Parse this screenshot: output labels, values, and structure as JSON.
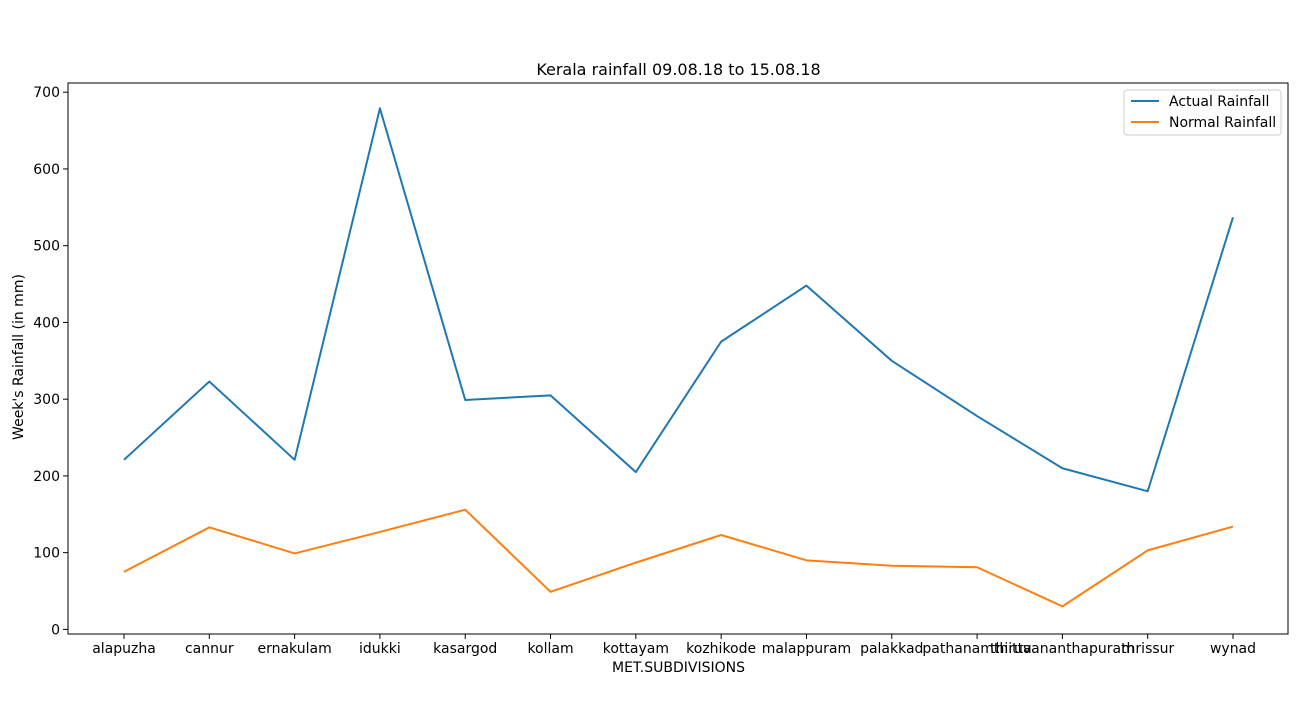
{
  "chart_data": {
    "type": "line",
    "title": "Kerala rainfall 09.08.18 to 15.08.18",
    "xlabel": "MET.SUBDIVISIONS",
    "ylabel": "Week's Rainfall (in mm)",
    "categories": [
      "alapuzha",
      "cannur",
      "ernakulam",
      "idukki",
      "kasargod",
      "kollam",
      "kottayam",
      "kozhikode",
      "malappuram",
      "palakkad",
      "pathanamthitta",
      "thiruvananthapuram",
      "thrissur",
      "wynad"
    ],
    "yticks": [
      0,
      100,
      200,
      300,
      400,
      500,
      600,
      700
    ],
    "ylim": [
      -6,
      712
    ],
    "grid": false,
    "legend_position": "top-right",
    "series": [
      {
        "name": "Actual Rainfall",
        "color": "#1f77b4",
        "values": [
          221,
          323,
          221,
          679,
          299,
          305,
          205,
          375,
          448,
          350,
          278,
          210,
          180,
          537
        ]
      },
      {
        "name": "Normal Rainfall",
        "color": "#ff7f0e",
        "values": [
          75,
          133,
          99,
          127,
          156,
          49,
          87,
          123,
          90,
          83,
          81,
          30,
          103,
          134
        ]
      }
    ]
  }
}
